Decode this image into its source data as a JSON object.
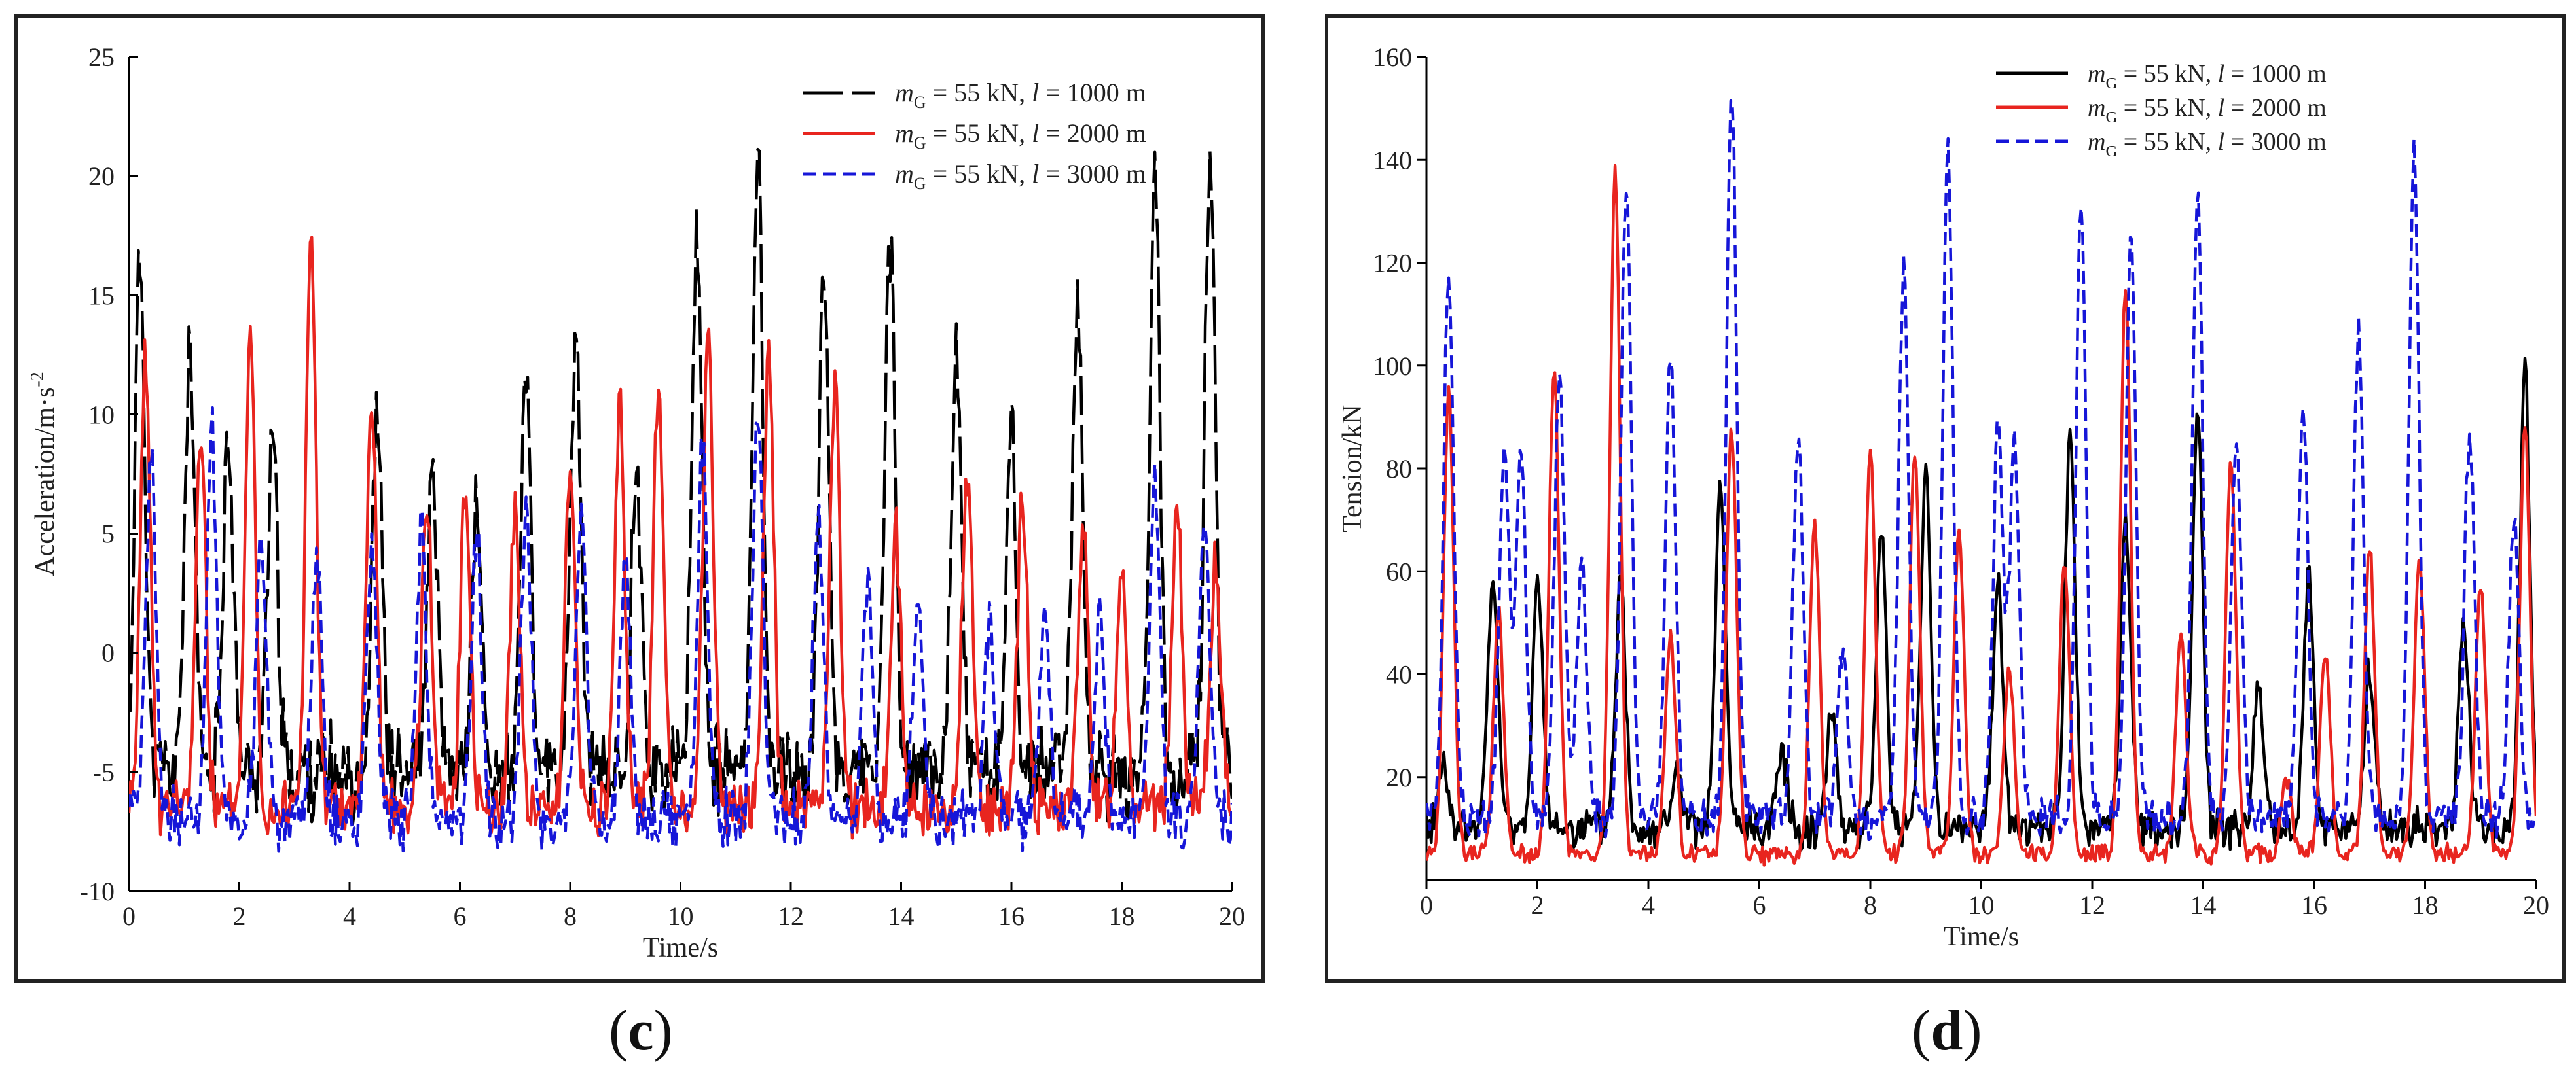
{
  "charts": [
    {
      "id": "c",
      "caption": "c",
      "chart_data": {
        "type": "line",
        "title": "",
        "xlabel": "Time/s",
        "ylabel": "Acceleration/m·s",
        "ylabel_sup": "-2",
        "xlim": [
          0,
          20
        ],
        "ylim": [
          -10,
          25
        ],
        "xticks": [
          0,
          2,
          4,
          6,
          8,
          10,
          12,
          14,
          16,
          18,
          20
        ],
        "yticks": [
          -10,
          -5,
          0,
          5,
          10,
          15,
          20,
          25
        ],
        "legend_position": "top-right",
        "series": [
          {
            "name": "mG = 55 kN, l = 1000 m",
            "legend_parts": [
              "m",
              "G",
              " = 55 kN, ",
              "l",
              " = 1000 m"
            ],
            "color": "#000000",
            "dash": "long-dash",
            "base": -5,
            "amp": 3,
            "seed": 11,
            "peaks": [
              [
                0.2,
                16.5
              ],
              [
                1.1,
                12.5
              ],
              [
                1.8,
                9.5
              ],
              [
                2.6,
                9
              ],
              [
                4.5,
                10
              ],
              [
                5.5,
                7
              ],
              [
                6.3,
                6
              ],
              [
                7.2,
                11.5
              ],
              [
                8.1,
                13.5
              ],
              [
                9.2,
                8
              ],
              [
                10.3,
                18
              ],
              [
                11.4,
                21.5
              ],
              [
                12.6,
                16
              ],
              [
                13.8,
                17.5
              ],
              [
                15.0,
                12.5
              ],
              [
                16.0,
                9
              ],
              [
                17.2,
                15
              ],
              [
                18.6,
                19.5
              ],
              [
                19.6,
                21.5
              ]
            ]
          },
          {
            "name": "mG = 55 kN, l = 2000 m",
            "legend_parts": [
              "m",
              "G",
              " = 55 kN, ",
              "l",
              " = 2000 m"
            ],
            "color": "#e8251f",
            "dash": "solid",
            "base": -6.5,
            "amp": 2,
            "seed": 23,
            "peaks": [
              [
                0.3,
                12
              ],
              [
                1.3,
                9
              ],
              [
                2.2,
                13.5
              ],
              [
                3.3,
                17.2
              ],
              [
                4.4,
                11
              ],
              [
                5.4,
                6.5
              ],
              [
                6.1,
                7
              ],
              [
                7.0,
                6
              ],
              [
                8.0,
                8
              ],
              [
                8.9,
                10
              ],
              [
                9.6,
                11
              ],
              [
                10.5,
                13.5
              ],
              [
                11.6,
                13
              ],
              [
                12.8,
                11
              ],
              [
                13.9,
                5
              ],
              [
                15.2,
                8
              ],
              [
                16.2,
                6.5
              ],
              [
                17.3,
                5
              ],
              [
                18.0,
                4
              ],
              [
                19.0,
                6
              ],
              [
                19.7,
                4
              ]
            ]
          },
          {
            "name": "mG = 55 kN, l = 3000 m",
            "legend_parts": [
              "m",
              "G",
              " = 55 kN, ",
              "l",
              " = 3000 m"
            ],
            "color": "#1616d8",
            "dash": "short-dash",
            "base": -7,
            "amp": 2,
            "seed": 37,
            "peaks": [
              [
                0.4,
                8
              ],
              [
                1.5,
                9.5
              ],
              [
                2.4,
                5
              ],
              [
                3.4,
                4
              ],
              [
                4.4,
                5
              ],
              [
                5.3,
                5
              ],
              [
                6.3,
                5
              ],
              [
                7.2,
                6
              ],
              [
                8.2,
                6
              ],
              [
                9.0,
                4
              ],
              [
                10.4,
                9
              ],
              [
                11.4,
                10
              ],
              [
                12.5,
                5.5
              ],
              [
                13.4,
                3
              ],
              [
                14.3,
                2
              ],
              [
                15.6,
                1
              ],
              [
                16.6,
                1.5
              ],
              [
                17.6,
                1
              ],
              [
                18.6,
                7
              ],
              [
                19.5,
                5
              ]
            ]
          }
        ]
      }
    },
    {
      "id": "d",
      "caption": "d",
      "chart_data": {
        "type": "line",
        "title": "",
        "xlabel": "Time/s",
        "ylabel": "Tension/kN",
        "ylabel_sup": "",
        "xlim": [
          0,
          20
        ],
        "ylim": [
          0,
          160
        ],
        "xticks": [
          0,
          2,
          4,
          6,
          8,
          10,
          12,
          14,
          16,
          18,
          20
        ],
        "yticks": [
          20,
          40,
          60,
          80,
          100,
          120,
          140,
          160
        ],
        "legend_position": "top-right",
        "series": [
          {
            "name": "mG = 55 kN, l = 1000 m",
            "legend_parts": [
              "m",
              "G",
              " = 55 kN, ",
              "l",
              " = 1000 m"
            ],
            "color": "#000000",
            "dash": "solid",
            "base": 10,
            "amp": 6,
            "seed": 41,
            "peaks": [
              [
                0.3,
                22
              ],
              [
                1.2,
                58
              ],
              [
                2.0,
                57
              ],
              [
                3.5,
                57
              ],
              [
                4.5,
                20
              ],
              [
                5.3,
                75
              ],
              [
                6.4,
                25
              ],
              [
                7.3,
                33
              ],
              [
                8.2,
                68
              ],
              [
                9.0,
                80
              ],
              [
                10.3,
                58
              ],
              [
                11.6,
                85
              ],
              [
                12.6,
                70
              ],
              [
                13.9,
                90
              ],
              [
                15.0,
                38
              ],
              [
                15.9,
                58
              ],
              [
                17.0,
                40
              ],
              [
                18.7,
                50
              ],
              [
                19.8,
                98
              ]
            ]
          },
          {
            "name": "mG = 55 kN, l = 2000 m",
            "legend_parts": [
              "m",
              "G",
              " = 55 kN, ",
              "l",
              " = 2000 m"
            ],
            "color": "#e8251f",
            "dash": "solid",
            "base": 5,
            "amp": 3,
            "seed": 53,
            "peaks": [
              [
                0.4,
                95
              ],
              [
                1.3,
                52
              ],
              [
                2.3,
                99
              ],
              [
                3.4,
                137
              ],
              [
                4.4,
                48
              ],
              [
                5.5,
                88
              ],
              [
                7.0,
                69
              ],
              [
                8.0,
                84
              ],
              [
                8.8,
                83
              ],
              [
                9.6,
                68
              ],
              [
                10.5,
                42
              ],
              [
                11.5,
                62
              ],
              [
                12.6,
                115
              ],
              [
                13.6,
                48
              ],
              [
                14.5,
                82
              ],
              [
                15.5,
                20
              ],
              [
                16.2,
                44
              ],
              [
                17.0,
                65
              ],
              [
                17.9,
                62
              ],
              [
                19.0,
                58
              ],
              [
                19.8,
                88
              ]
            ]
          },
          {
            "name": "mG = 55 kN, l = 3000 m",
            "legend_parts": [
              "m",
              "G",
              " = 55 kN, ",
              "l",
              " = 3000 m"
            ],
            "color": "#1616d8",
            "dash": "short-dash",
            "base": 12,
            "amp": 6,
            "seed": 67,
            "peaks": [
              [
                0.4,
                118
              ],
              [
                1.4,
                82
              ],
              [
                1.7,
                86
              ],
              [
                2.4,
                98
              ],
              [
                2.8,
                63
              ],
              [
                3.6,
                137
              ],
              [
                4.4,
                103
              ],
              [
                5.5,
                155
              ],
              [
                6.7,
                87
              ],
              [
                7.5,
                45
              ],
              [
                8.6,
                119
              ],
              [
                9.4,
                142
              ],
              [
                10.3,
                87
              ],
              [
                10.6,
                84
              ],
              [
                11.8,
                132
              ],
              [
                12.7,
                125
              ],
              [
                13.9,
                133
              ],
              [
                14.6,
                85
              ],
              [
                15.8,
                92
              ],
              [
                16.8,
                106
              ],
              [
                17.8,
                142
              ],
              [
                18.8,
                87
              ],
              [
                19.6,
                70
              ]
            ]
          }
        ]
      }
    }
  ]
}
